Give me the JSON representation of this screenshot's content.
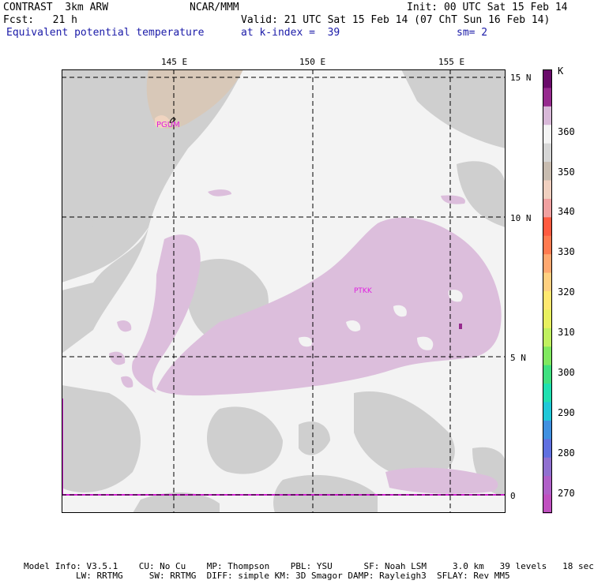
{
  "header": {
    "left1": "CONTRAST  3km ARW",
    "center1": "NCAR/MMM",
    "right1": "Init: 00 UTC Sat 15 Feb 14",
    "left2": "Fcst:   21 h",
    "right2": "Valid: 21 UTC Sat 15 Feb 14 (07 ChT Sun 16 Feb 14)",
    "field": "Equivalent potential temperature",
    "level": "at k-index =  39",
    "smooth": "sm= 2"
  },
  "map": {
    "lon_labels": [
      "145 E",
      "150 E",
      "155 E"
    ],
    "lat_labels": [
      "15 N",
      "10 N",
      "5 N",
      "0"
    ],
    "stations": [
      "PGUM",
      "PTKK"
    ]
  },
  "colorbar": {
    "unit": "K",
    "labels": [
      "360",
      "350",
      "340",
      "330",
      "320",
      "310",
      "300",
      "290",
      "280",
      "270"
    ],
    "colors": [
      "#6a0a6a",
      "#962a8e",
      "#d8b8d8",
      "#f4f4f4",
      "#d6d6d6",
      "#c8bcb0",
      "#f0d0c0",
      "#f0a0a0",
      "#ff5a40",
      "#ff7a50",
      "#ffa870",
      "#ffd080",
      "#ffe870",
      "#e8f060",
      "#c0f060",
      "#80e860",
      "#40e080",
      "#20e0b0",
      "#20c8d8",
      "#4090e0",
      "#6070e0",
      "#9070d0",
      "#b060c8",
      "#c050c0"
    ]
  },
  "footer": {
    "line1": "Model Info: V3.5.1    CU: No Cu    MP: Thompson    PBL: YSU      SF: Noah LSM     3.0 km   39 levels   18 sec",
    "line2": "LW: RRTMG     SW: RRTMG  DIFF: simple KM: 3D Smagor DAMP: Rayleigh3  SFLAY: Rev MM5"
  }
}
